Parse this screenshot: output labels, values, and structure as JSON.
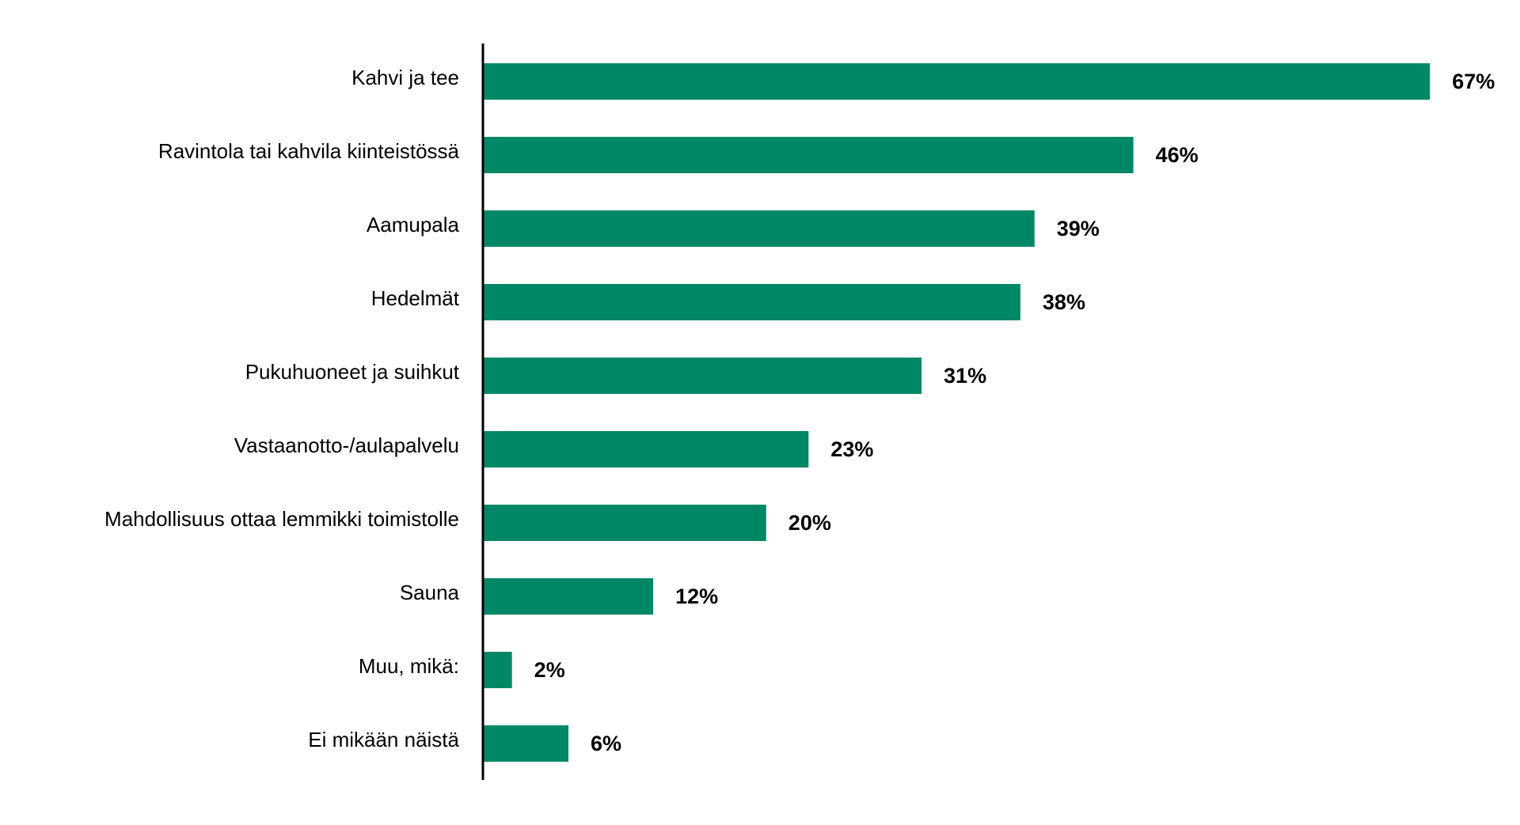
{
  "chart_data": {
    "type": "barh",
    "categories": [
      "Kahvi ja tee",
      "Ravintola tai kahvila kiinteistössä",
      "Aamupala",
      "Hedelmät",
      "Pukuhuoneet ja suihkut",
      "Vastaanotto-/aulapalvelu",
      "Mahdollisuus ottaa lemmikki toimistolle",
      "Sauna",
      "Muu, mikä:",
      "Ei mikään näistä"
    ],
    "values": [
      67,
      46,
      39,
      38,
      31,
      23,
      20,
      12,
      2,
      6
    ],
    "value_labels": [
      "67%",
      "46%",
      "39%",
      "38%",
      "31%",
      "23%",
      "20%",
      "12%",
      "2%",
      "6%"
    ],
    "color": "#008866"
  }
}
